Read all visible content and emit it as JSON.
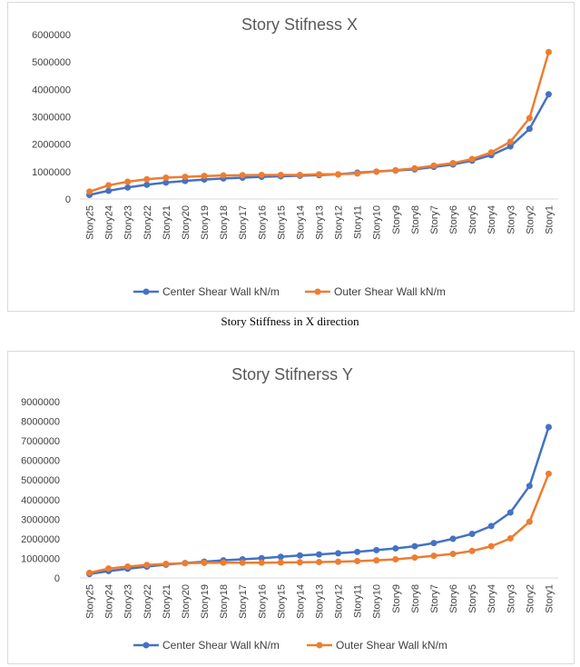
{
  "caption": "Story Stiffness in X direction",
  "chart_data": [
    {
      "type": "line",
      "title": "Story Stifness X",
      "xlabel": "",
      "ylabel": "",
      "categories": [
        "Story25",
        "Story24",
        "Story23",
        "Story22",
        "Story21",
        "Story20",
        "Story19",
        "Story18",
        "Story17",
        "Story16",
        "Story15",
        "Story14",
        "Story13",
        "Story12",
        "Story11",
        "Story10",
        "Story9",
        "Story8",
        "Story7",
        "Story6",
        "Story5",
        "Story4",
        "Story3",
        "Story2",
        "Story1"
      ],
      "ylim": [
        0,
        6000000
      ],
      "yticks": [
        "0",
        "1000000",
        "2000000",
        "3000000",
        "4000000",
        "5000000",
        "6000000"
      ],
      "grid": false,
      "legend_position": "bottom",
      "series": [
        {
          "name": "Center Shear Wall  kN/m",
          "color": "#4472C4",
          "values": [
            150000,
            300000,
            420000,
            520000,
            600000,
            660000,
            710000,
            750000,
            780000,
            810000,
            830000,
            850000,
            870000,
            900000,
            960000,
            1000000,
            1040000,
            1080000,
            1170000,
            1260000,
            1400000,
            1600000,
            1920000,
            2560000,
            3820000
          ]
        },
        {
          "name": "Outer Shear Wall kN/m",
          "color": "#ED7D31",
          "values": [
            270000,
            500000,
            630000,
            720000,
            780000,
            810000,
            840000,
            860000,
            870000,
            880000,
            880000,
            880000,
            900000,
            900000,
            930000,
            1000000,
            1050000,
            1120000,
            1220000,
            1310000,
            1460000,
            1700000,
            2090000,
            2950000,
            5360000
          ]
        }
      ]
    },
    {
      "type": "line",
      "title": "Story Stifnerss Y",
      "xlabel": "",
      "ylabel": "",
      "categories": [
        "Story25",
        "Story24",
        "Story23",
        "Story22",
        "Story21",
        "Story20",
        "Story19",
        "Story18",
        "Story17",
        "Story16",
        "Story15",
        "Story14",
        "Story13",
        "Story12",
        "Story11",
        "Story10",
        "Story9",
        "Story8",
        "Story7",
        "Story6",
        "Story5",
        "Story4",
        "Story3",
        "Story2",
        "Story1"
      ],
      "ylim": [
        0,
        9000000
      ],
      "yticks": [
        "0",
        "1000000",
        "2000000",
        "3000000",
        "4000000",
        "5000000",
        "6000000",
        "7000000",
        "8000000",
        "9000000"
      ],
      "grid": false,
      "legend_position": "bottom",
      "series": [
        {
          "name": "Center Shear Wall  kN/m",
          "color": "#4472C4",
          "values": [
            200000,
            350000,
            470000,
            580000,
            680000,
            760000,
            830000,
            900000,
            950000,
            1010000,
            1080000,
            1150000,
            1200000,
            1260000,
            1330000,
            1420000,
            1510000,
            1620000,
            1780000,
            2000000,
            2250000,
            2650000,
            3340000,
            4700000,
            7700000
          ]
        },
        {
          "name": "Outer Shear Wall kN/m",
          "color": "#ED7D31",
          "values": [
            260000,
            480000,
            580000,
            660000,
            720000,
            750000,
            770000,
            780000,
            780000,
            780000,
            790000,
            800000,
            810000,
            830000,
            860000,
            900000,
            950000,
            1040000,
            1130000,
            1230000,
            1380000,
            1620000,
            2020000,
            2870000,
            5320000
          ]
        }
      ]
    }
  ]
}
